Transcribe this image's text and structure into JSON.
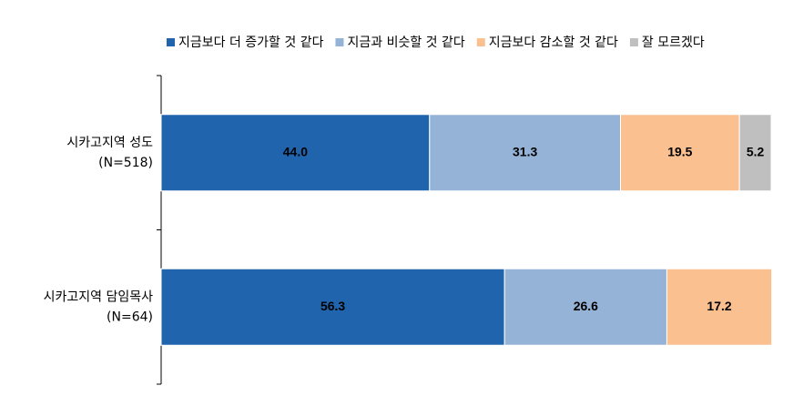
{
  "chart_data": {
    "type": "stacked-bar-horizontal",
    "categories": [
      [
        "시카고지역 성도",
        "(N=518)"
      ],
      [
        "시카고지역 담임목사",
        "(N=64)"
      ]
    ],
    "series": [
      {
        "name": "지금보다 더 증가할 것 같다",
        "color": "#1f64ad",
        "label_color": "#ffffff",
        "values": [
          44.0,
          56.3
        ],
        "value_labels": [
          "44.0",
          "56.3"
        ]
      },
      {
        "name": "지금과 비슷할 것 같다",
        "color": "#95b3d7",
        "label_color": "#000000",
        "values": [
          31.3,
          26.6
        ],
        "value_labels": [
          "31.3",
          "26.6"
        ]
      },
      {
        "name": "지금보다 감소할 것 같다",
        "color": "#fac090",
        "label_color": "#000000",
        "values": [
          19.5,
          17.2
        ],
        "value_labels": [
          "19.5",
          "17.2"
        ]
      },
      {
        "name": "잘 모르겠다",
        "color": "#bfbfbf",
        "label_color": "#000000",
        "values": [
          5.2,
          null
        ],
        "value_labels": [
          "5.2",
          null
        ]
      }
    ],
    "xlim": [
      0,
      100
    ],
    "legend": "top"
  }
}
